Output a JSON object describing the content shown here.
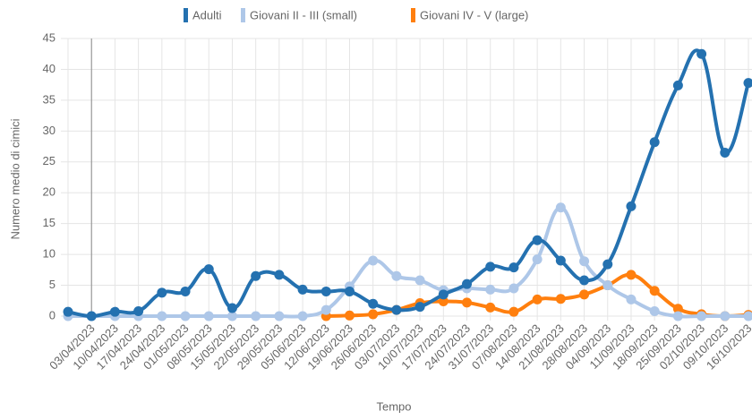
{
  "chart_data": {
    "type": "line",
    "x_label": "Tempo",
    "y_label": "Numero medio di cimici",
    "categories": [
      null,
      "03/04/2023",
      "10/04/2023",
      "17/04/2023",
      "24/04/2023",
      "01/05/2023",
      "08/05/2023",
      "15/05/2023",
      "22/05/2023",
      "29/05/2023",
      "05/06/2023",
      "12/06/2023",
      "19/06/2023",
      "26/06/2023",
      "03/07/2023",
      "10/07/2023",
      "17/07/2023",
      "24/07/2023",
      "31/07/2023",
      "07/08/2023",
      "14/08/2023",
      "21/08/2023",
      "28/08/2023",
      "04/09/2023",
      "11/09/2023",
      "18/09/2023",
      "25/09/2023",
      "02/10/2023",
      "09/10/2023",
      "16/10/2023"
    ],
    "series": [
      {
        "name": "Adulti",
        "color": "#2471b0",
        "values": [
          0.7,
          0,
          0.7,
          0.8,
          3.8,
          4.0,
          7.6,
          1.3,
          6.5,
          6.7,
          4.3,
          4.0,
          4.0,
          2.0,
          1.0,
          1.5,
          3.5,
          5.2,
          8.0,
          7.9,
          12.3,
          9.0,
          5.8,
          8.4,
          17.8,
          28.2,
          37.4,
          42.5,
          26.5,
          37.8
        ]
      },
      {
        "name": "Giovani II - III (small)",
        "color": "#aec7e8",
        "values": [
          0,
          0,
          0,
          0,
          0,
          0,
          0,
          0,
          0,
          0,
          0,
          1.0,
          4.8,
          9.0,
          6.5,
          5.8,
          4.2,
          4.5,
          4.3,
          4.5,
          9.2,
          17.6,
          8.9,
          5.0,
          2.7,
          0.8,
          0,
          0,
          0,
          0
        ]
      },
      {
        "name": "Giovani IV - V (large)",
        "color": "#ff7f0e",
        "values": [
          null,
          null,
          null,
          null,
          null,
          null,
          null,
          null,
          null,
          null,
          null,
          0,
          0.1,
          0.3,
          1.0,
          2.1,
          2.4,
          2.2,
          1.4,
          0.7,
          2.7,
          2.8,
          3.5,
          5.0,
          6.7,
          4.1,
          1.2,
          0.3,
          0,
          0.2
        ]
      }
    ],
    "ylim": [
      0,
      45
    ],
    "yticks": [
      0,
      5,
      10,
      15,
      20,
      25,
      30,
      35,
      40,
      45
    ],
    "grid": true,
    "legend": "top"
  }
}
